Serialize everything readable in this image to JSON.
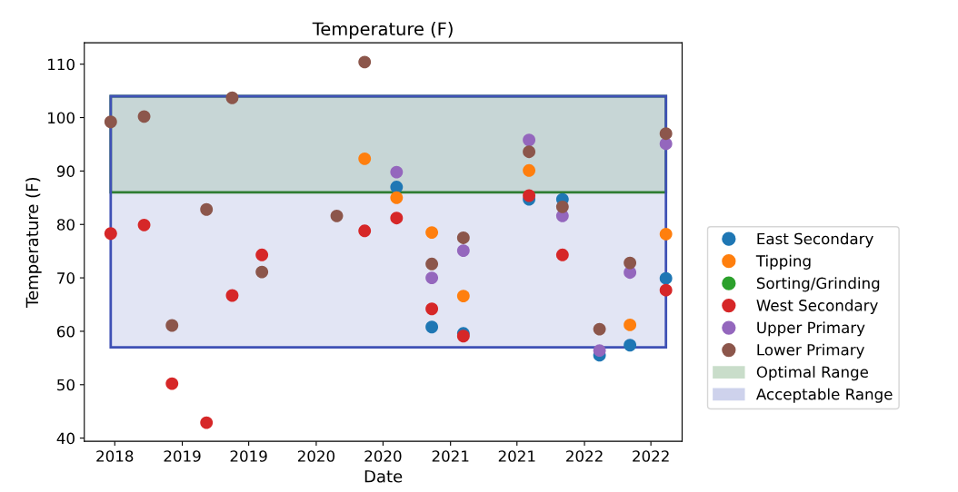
{
  "chart_data": {
    "type": "scatter",
    "title": "Temperature (F)",
    "xlabel": "Date",
    "ylabel": "Temperature (F)",
    "xlim": [
      "2018-04-09",
      "2022-09-24"
    ],
    "xticks": [
      {
        "value": "2018-07-01",
        "label": "2018"
      },
      {
        "value": "2019-01-01",
        "label": "2019"
      },
      {
        "value": "2019-07-01",
        "label": "2019"
      },
      {
        "value": "2020-01-01",
        "label": "2020"
      },
      {
        "value": "2020-07-01",
        "label": "2020"
      },
      {
        "value": "2021-01-01",
        "label": "2021"
      },
      {
        "value": "2021-07-01",
        "label": "2021"
      },
      {
        "value": "2022-01-01",
        "label": "2022"
      },
      {
        "value": "2022-07-01",
        "label": "2022"
      }
    ],
    "ylim": [
      39.4,
      114
    ],
    "yticks": [
      40,
      50,
      60,
      70,
      80,
      90,
      100,
      110
    ],
    "grid": false,
    "legend": "right",
    "marker": "circle",
    "series": [
      {
        "name": "East Secondary",
        "color": "#1f77b4",
        "x": [
          "2020-08-07",
          "2020-11-11",
          "2021-02-05",
          "2021-08-03",
          "2021-11-02",
          "2022-02-11",
          "2022-05-05",
          "2022-08-11"
        ],
        "values": [
          87.0,
          60.8,
          59.6,
          84.7,
          84.7,
          55.5,
          57.4,
          69.9
        ]
      },
      {
        "name": "Tipping",
        "color": "#ff7f0e",
        "x": [
          "2020-05-12",
          "2020-08-07",
          "2020-11-11",
          "2021-02-05",
          "2021-08-03",
          "2022-05-05",
          "2022-08-11"
        ],
        "values": [
          92.3,
          85.0,
          78.5,
          66.6,
          90.1,
          61.2,
          78.2
        ]
      },
      {
        "name": "Sorting/Grinding",
        "color": "#2ca02c"
      },
      {
        "name": "West Secondary",
        "color": "#d62728",
        "x": [
          "2018-06-20",
          "2018-09-19",
          "2018-12-04",
          "2019-03-08",
          "2019-05-17",
          "2019-08-06",
          "2020-05-12",
          "2020-08-07",
          "2020-11-11",
          "2021-02-05",
          "2021-08-03",
          "2021-11-02",
          "2022-08-11"
        ],
        "values": [
          78.3,
          79.9,
          50.2,
          42.9,
          66.7,
          74.3,
          78.8,
          81.2,
          64.2,
          59.1,
          85.4,
          74.3,
          67.7
        ]
      },
      {
        "name": "Upper Primary",
        "color": "#9467bd",
        "x": [
          "2020-08-07",
          "2020-11-11",
          "2021-02-05",
          "2021-08-03",
          "2021-11-02",
          "2022-02-11",
          "2022-05-05",
          "2022-08-11"
        ],
        "values": [
          89.8,
          70.0,
          75.1,
          95.8,
          81.6,
          56.4,
          71.0,
          95.1
        ]
      },
      {
        "name": "Lower Primary",
        "color": "#8c564b",
        "x": [
          "2018-06-20",
          "2018-09-19",
          "2018-12-04",
          "2019-03-08",
          "2019-05-17",
          "2019-08-06",
          "2020-02-26",
          "2020-05-12",
          "2020-11-11",
          "2021-02-05",
          "2021-08-03",
          "2021-11-02",
          "2022-02-11",
          "2022-05-05",
          "2022-08-11"
        ],
        "values": [
          99.2,
          100.2,
          61.1,
          82.8,
          103.7,
          71.1,
          81.6,
          110.4,
          72.6,
          77.5,
          93.6,
          83.3,
          60.4,
          72.8,
          97.0
        ]
      }
    ],
    "bands": [
      {
        "axis": "y",
        "from": 57,
        "to": 104,
        "label": "Acceptable Range",
        "color": "#3f51b5"
      },
      {
        "axis": "y",
        "from": 86,
        "to": 104,
        "label": "Optimal Range",
        "color": "#2e7d32"
      }
    ]
  }
}
